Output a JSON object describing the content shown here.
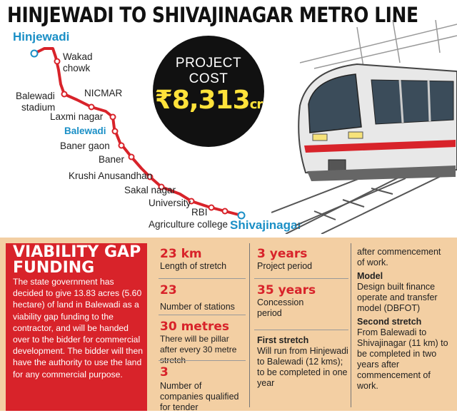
{
  "title": "HINJEWADI TO SHIVAJINAGAR METRO LINE",
  "route": {
    "stations": {
      "hinjewadi": "Hinjewadi",
      "wakad_line1": "Wakad",
      "wakad_line2": "chowk",
      "balewadi_stadium_line1": "Balewadi",
      "balewadi_stadium_line2": "stadium",
      "nicmar": "NICMAR",
      "laxmi_nagar": "Laxmi nagar",
      "balewadi": "Balewadi",
      "baner_gaon": "Baner gaon",
      "baner": "Baner",
      "krushi_anusandhan": "Krushi Anusandhan",
      "sakal_nagar": "Sakal nagar",
      "university": "University",
      "rbi": "RBI",
      "agriculture_college": "Agriculture college",
      "shivajinagar": "Shivajinagar"
    },
    "colors": {
      "line": "#d8232a",
      "terminal": "#1a8fc6"
    }
  },
  "cost": {
    "line1": "PROJECT",
    "line2": "COST",
    "amount": "₹8,313",
    "unit": "cr"
  },
  "viability": {
    "heading_line1": "VIABILITY GAP",
    "heading_line2": "FUNDING",
    "body": "The state government has decided to give 13.83 acres (5.60 hectare) of land in Balewadi as a viability gap funding to the contractor, and will be handed over to the bidder for commercial development. The bidder will then have the authority to use the land for any commercial purpose."
  },
  "facts": {
    "length": {
      "value": "23 km",
      "label": "Length of stretch"
    },
    "stations": {
      "value": "23",
      "label": "Number of stations"
    },
    "pillar": {
      "value": "30 metres",
      "label": "There will be pillar after every 30 metre stretch"
    },
    "companies": {
      "value": "3",
      "label": "Number of companies qualified for tender"
    },
    "project_period": {
      "value": "3 years",
      "label": "Project period"
    },
    "concession": {
      "value": "35 years",
      "label": "Concession period"
    },
    "first_stretch": {
      "heading": "First stretch",
      "text": "Will run from Hinjewadi to Balewadi (12 kms); to be completed in one year"
    },
    "continuation": "after commencement of work.",
    "model": {
      "heading": "Model",
      "text": "Design built finance operate and transfer model (DBFOT)"
    },
    "second_stretch": {
      "heading": "Second stretch",
      "text": "From Balewadi to Shivajinagar (11 km) to be completed in two years after commencement of work."
    }
  }
}
